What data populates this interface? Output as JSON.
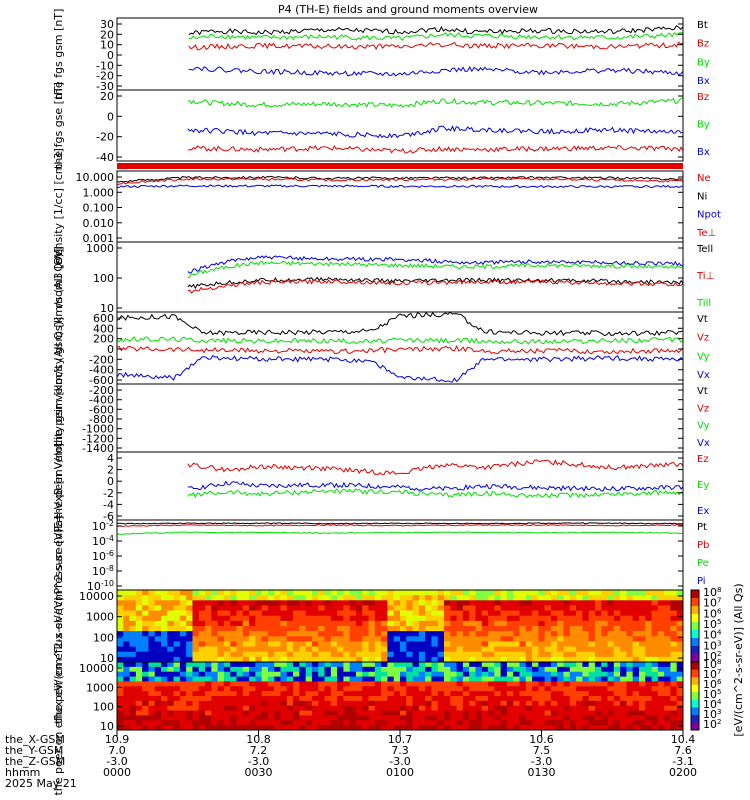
{
  "title": "P4 (TH-E) fields and ground moments overview",
  "colors": {
    "black": "#000000",
    "red": "#e00000",
    "green": "#00e000",
    "blue": "#0000e0",
    "frame": "#000000",
    "background": "#ffffff"
  },
  "footer": {
    "row_labels": [
      "the_X-GSM",
      "the_Y-GSM",
      "the_Z-GSM",
      "hhmm",
      "2025 May 21"
    ],
    "columns": [
      {
        "x": "10.9",
        "y": "7.0",
        "z": "-3.0",
        "t": "0000"
      },
      {
        "x": "10.8",
        "y": "7.2",
        "z": "-3.0",
        "t": "0030"
      },
      {
        "x": "10.7",
        "y": "7.3",
        "z": "-3.0",
        "t": "0100"
      },
      {
        "x": "10.6",
        "y": "7.5",
        "z": "-3.0",
        "t": "0130"
      },
      {
        "x": "10.4",
        "y": "7.6",
        "z": "-3.1",
        "t": "0200"
      }
    ]
  },
  "colorbar_label": "[eV/(cm^2-s-sr-eV)] (All Qs)",
  "chart_data": [
    {
      "id": "fgs-gsm",
      "type": "line",
      "ylabel": "the fgs gsm [nT]",
      "yticks": [
        "30",
        "20",
        "10",
        "0",
        "-10",
        "-20",
        "-30"
      ],
      "ylim": [
        -35,
        38
      ],
      "legend": [
        {
          "text": "Bt",
          "color": "#000000"
        },
        {
          "text": "Bz",
          "color": "#e00000"
        },
        {
          "text": "By",
          "color": "#00e000"
        },
        {
          "text": "Bx",
          "color": "#0000e0"
        }
      ],
      "x_hours": [
        0,
        0.25,
        0.35,
        0.5,
        0.75,
        1.0,
        1.15,
        1.25,
        1.5,
        1.75,
        2.0
      ],
      "series": [
        {
          "name": "Bt",
          "color": "#000000",
          "x_start": 0.25,
          "values": [
            null,
            22,
            25,
            23,
            26,
            24,
            27,
            24,
            25,
            24,
            28
          ]
        },
        {
          "name": "By",
          "color": "#00e000",
          "x_start": 0.25,
          "values": [
            null,
            17,
            20,
            18,
            19,
            17,
            21,
            20,
            19,
            18,
            21
          ]
        },
        {
          "name": "Bz",
          "color": "#e00000",
          "x_start": 0.25,
          "values": [
            null,
            8,
            9,
            10,
            9,
            9,
            11,
            10,
            10,
            9,
            11
          ]
        },
        {
          "name": "Bx",
          "color": "#0000e0",
          "x_start": 0.25,
          "values": [
            null,
            -12,
            -14,
            -16,
            -18,
            -19,
            -15,
            -14,
            -17,
            -15,
            -18
          ]
        }
      ]
    },
    {
      "id": "fgs-gse",
      "type": "line",
      "ylabel": "the fgs gse [nT]",
      "yticks": [
        "20",
        "0",
        "-20",
        "-40"
      ],
      "ylim": [
        -52,
        35
      ],
      "legend": [
        {
          "text": "Bz",
          "color": "#e00000"
        },
        {
          "text": "By",
          "color": "#00e000"
        },
        {
          "text": "Bx",
          "color": "#0000e0"
        }
      ],
      "x_hours": [
        0.25,
        0.35,
        0.5,
        0.75,
        1.0,
        1.15,
        1.25,
        1.5,
        1.75,
        2.0
      ],
      "series": [
        {
          "name": "By",
          "color": "#00e000",
          "values": [
            22,
            19,
            17,
            18,
            16,
            22,
            20,
            19,
            18,
            22
          ]
        },
        {
          "name": "Bx",
          "color": "#0000e0",
          "values": [
            -14,
            -15,
            -18,
            -19,
            -21,
            -12,
            -13,
            -16,
            -14,
            -17
          ]
        },
        {
          "name": "Bz",
          "color": "#e00000",
          "values": [
            -36,
            -37,
            -38,
            -36,
            -40,
            -37,
            -38,
            -37,
            -36,
            -37
          ]
        }
      ]
    },
    {
      "id": "density",
      "type": "line",
      "ylabel": "Density [1/cc] [cm-3]",
      "yscale": "log",
      "yticks": [
        "10.000",
        "1.000",
        "0.100",
        "0.010",
        "0.001"
      ],
      "ylim": [
        0.0004,
        25
      ],
      "legend": [
        {
          "text": "Ne",
          "color": "#e00000"
        },
        {
          "text": "Ni",
          "color": "#000000"
        },
        {
          "text": "Npot",
          "color": "#0000e0"
        },
        {
          "text": "Te⊥",
          "color": "#e00000"
        }
      ],
      "x_hours": [
        0,
        0.25,
        0.5,
        0.75,
        1.0,
        1.25,
        1.5,
        1.75,
        2.0
      ],
      "series": [
        {
          "name": "Ni",
          "color": "#000000",
          "values": [
            4.5,
            9,
            9.5,
            8,
            8.5,
            8.5,
            9,
            8.5,
            7
          ]
        },
        {
          "name": "Ne",
          "color": "#e00000",
          "values": [
            3.5,
            7,
            7,
            6,
            6.5,
            7,
            7,
            6,
            5
          ]
        },
        {
          "name": "Npot",
          "color": "#0000e0",
          "values": [
            2.2,
            2.5,
            2.4,
            2.4,
            2.3,
            2.3,
            2.2,
            2.2,
            2.3
          ]
        }
      ]
    },
    {
      "id": "moments-temp",
      "type": "line",
      "ylabel": "mom3 [eV]",
      "yscale": "log",
      "yticks": [
        "1000",
        "100",
        "10"
      ],
      "ylim": [
        7,
        3000
      ],
      "legend": [
        {
          "text": "Tell",
          "color": "#000000"
        },
        {
          "text": "Ti⊥",
          "color": "#e00000"
        },
        {
          "text": "Till",
          "color": "#00e000"
        }
      ],
      "x_hours": [
        0.25,
        0.5,
        0.75,
        1.0,
        1.25,
        1.5,
        1.75,
        2.0
      ],
      "series": [
        {
          "name": "Ti⊥",
          "color": "#0000e0",
          "values": [
            200,
            800,
            700,
            650,
            500,
            550,
            500,
            450
          ]
        },
        {
          "name": "Till",
          "color": "#00e000",
          "values": [
            150,
            500,
            450,
            400,
            350,
            400,
            380,
            320
          ]
        },
        {
          "name": "Tell",
          "color": "#000000",
          "values": [
            60,
            110,
            120,
            100,
            110,
            110,
            100,
            90
          ]
        },
        {
          "name": "Te⊥",
          "color": "#e00000",
          "values": [
            40,
            90,
            100,
            85,
            95,
            95,
            85,
            75
          ]
        }
      ]
    },
    {
      "id": "peir-velocity",
      "type": "line",
      "ylabel": "the peir velocity gsm [km/s (All Qs)]",
      "yticks": [
        "600",
        "400",
        "200",
        "0",
        "-200",
        "-400",
        "-600"
      ],
      "ylim": [
        -700,
        680
      ],
      "legend": [
        {
          "text": "Vt",
          "color": "#000000"
        },
        {
          "text": "Vz",
          "color": "#e00000"
        },
        {
          "text": "Vy",
          "color": "#00e000"
        },
        {
          "text": "Vx",
          "color": "#0000e0"
        }
      ],
      "x_hours": [
        0,
        0.2,
        0.3,
        0.5,
        0.75,
        0.9,
        1.0,
        1.2,
        1.3,
        1.5,
        1.75,
        2.0
      ],
      "series": [
        {
          "name": "Vt",
          "color": "#000000",
          "values": [
            560,
            600,
            280,
            290,
            300,
            320,
            610,
            640,
            300,
            280,
            270,
            290
          ]
        },
        {
          "name": "Vy",
          "color": "#00e000",
          "values": [
            150,
            160,
            140,
            120,
            130,
            110,
            140,
            130,
            120,
            110,
            130,
            150
          ]
        },
        {
          "name": "Vz",
          "color": "#e00000",
          "values": [
            -20,
            -30,
            -50,
            -60,
            -80,
            -60,
            -40,
            -20,
            -70,
            -60,
            -80,
            -50
          ]
        },
        {
          "name": "Vx",
          "color": "#0000e0",
          "values": [
            -520,
            -590,
            -200,
            -220,
            -230,
            -250,
            -590,
            -620,
            -220,
            -230,
            -200,
            -230
          ]
        }
      ]
    },
    {
      "id": "peer-velocity",
      "type": "line",
      "ylabel": "the peer velocity gsm [km/s (All Qs)]",
      "yticks": [
        "-200",
        "-400",
        "-600",
        "-800",
        "-1000",
        "-1200",
        "-1400"
      ],
      "ylim": [
        -1450,
        -150
      ],
      "legend": [
        {
          "text": "Vt",
          "color": "#000000"
        },
        {
          "text": "Vz",
          "color": "#e00000"
        },
        {
          "text": "Vy",
          "color": "#00e000"
        },
        {
          "text": "Vx",
          "color": "#0000e0"
        }
      ],
      "series": []
    },
    {
      "id": "efield",
      "type": "line",
      "ylabel": "E=-VxB [mV/m]",
      "yticks": [
        "4",
        "2",
        "0",
        "-2",
        "-4",
        "-6"
      ],
      "ylim": [
        -6.5,
        4.5
      ],
      "legend": [
        {
          "text": "Ez",
          "color": "#e00000"
        },
        {
          "text": "Ey",
          "color": "#00e000"
        },
        {
          "text": "Ex",
          "color": "#0000e0"
        }
      ],
      "x_hours": [
        0.25,
        0.4,
        0.5,
        0.75,
        1.0,
        1.15,
        1.3,
        1.5,
        1.75,
        2.0
      ],
      "series": [
        {
          "name": "Ez",
          "color": "#e00000",
          "values": [
            2.5,
            1.5,
            2.2,
            1.8,
            1.0,
            2.5,
            2.0,
            3.0,
            2.0,
            2.5
          ]
        },
        {
          "name": "Ex",
          "color": "#0000e0",
          "values": [
            -1.5,
            -0.5,
            -1.0,
            -0.8,
            -1.2,
            -1.5,
            -1.0,
            -1.3,
            -1.5,
            -1.2
          ]
        },
        {
          "name": "Ey",
          "color": "#00e000",
          "values": [
            -2.5,
            -2.0,
            -2.3,
            -1.8,
            -2.0,
            -2.5,
            -2.2,
            -2.6,
            -2.3,
            -2.0
          ]
        }
      ]
    },
    {
      "id": "pressure",
      "type": "line",
      "ylabel": "Pressure [nPa]",
      "yscale": "log",
      "yticks": [
        "10^-2",
        "10^-4",
        "10^-6",
        "10^-8",
        "10^-10"
      ],
      "ylim": [
        1e-11,
        2
      ],
      "legend": [
        {
          "text": "Pt",
          "color": "#000000"
        },
        {
          "text": "Pb",
          "color": "#e00000"
        },
        {
          "text": "Pe",
          "color": "#00e000"
        },
        {
          "text": "Pi",
          "color": "#0000e0"
        }
      ],
      "x_hours": [
        0,
        0.25,
        0.5,
        0.75,
        1.0,
        1.25,
        1.5,
        1.75,
        2.0
      ],
      "series": [
        {
          "name": "Pt",
          "color": "#000000",
          "values": [
            0.5,
            0.6,
            0.6,
            0.55,
            0.6,
            0.55,
            0.6,
            0.6,
            0.5
          ]
        },
        {
          "name": "Pb",
          "color": "#e00000",
          "values": [
            0.2,
            0.3,
            0.25,
            0.3,
            0.25,
            0.3,
            0.3,
            0.25,
            0.3
          ]
        },
        {
          "name": "Pe",
          "color": "#00e000",
          "values": [
            0.01,
            0.02,
            0.02,
            0.015,
            0.02,
            0.02,
            0.018,
            0.02,
            0.015
          ]
        }
      ]
    },
    {
      "id": "peir-spectrogram",
      "type": "heatmap",
      "ylabel": "the peir en eflux eV/(cm^2-s-sr-eV)",
      "yscale": "log",
      "yticks": [
        "10000",
        "1000",
        "100",
        "10"
      ],
      "ylim": [
        8,
        25000
      ],
      "colorbar_ticks": [
        "10^8",
        "10^7",
        "10^6",
        "10^5",
        "10^4",
        "10^3",
        "10^2"
      ]
    },
    {
      "id": "peer-spectrogram",
      "type": "heatmap",
      "ylabel": "the peer en eflux eV/(cm^2-s-sr-eV)",
      "yscale": "log",
      "yticks": [
        "10000",
        "1000",
        "100",
        "10"
      ],
      "ylim": [
        8,
        25000
      ],
      "colorbar_ticks": [
        "10^8",
        "10^7",
        "10^6",
        "10^5",
        "10^4",
        "10^3",
        "10^2"
      ]
    }
  ]
}
